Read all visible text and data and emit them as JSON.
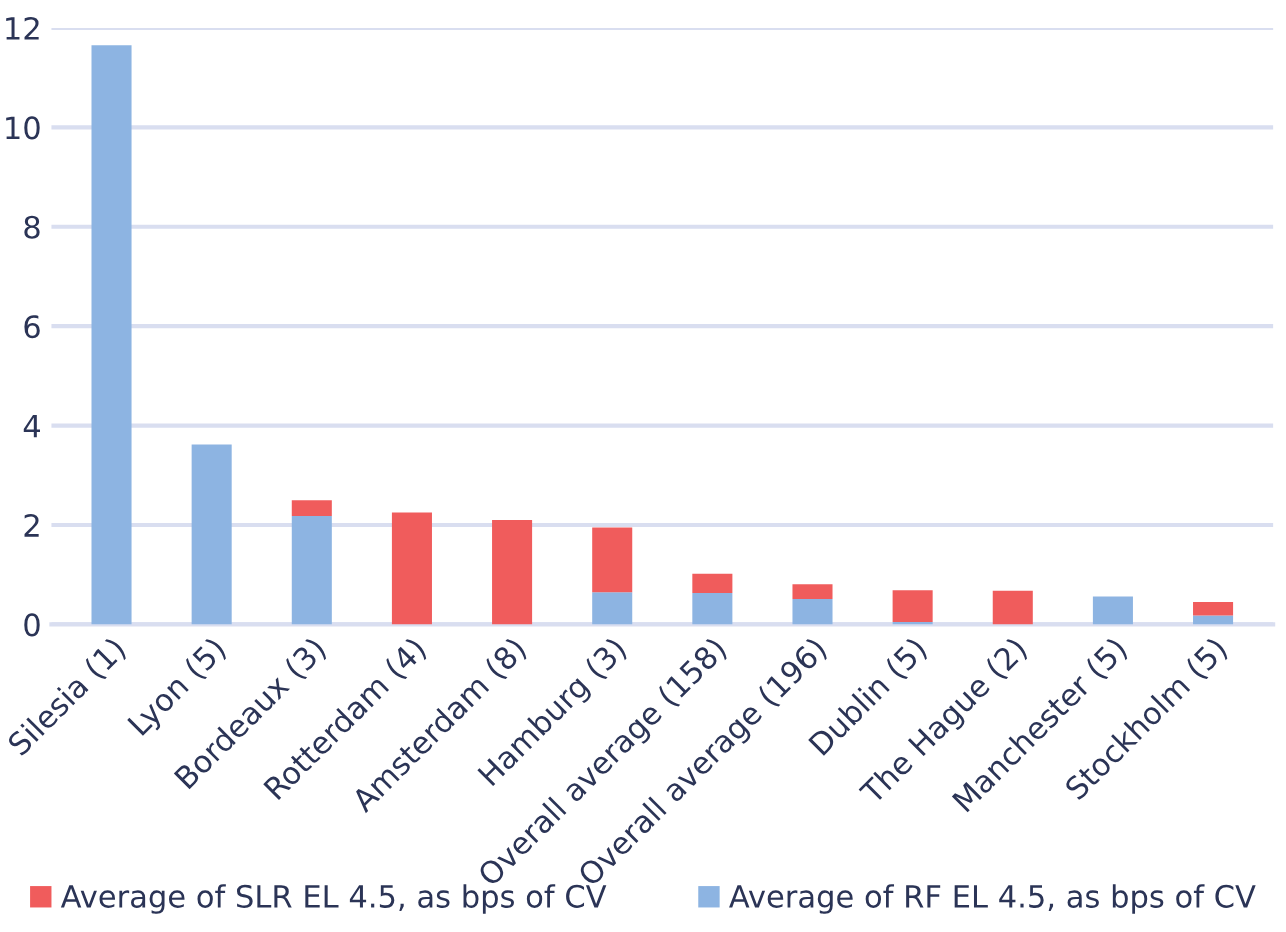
{
  "chart_data": {
    "type": "bar",
    "stacked": true,
    "categories": [
      "Silesia (1)",
      "Lyon (5)",
      "Bordeaux (3)",
      "Rotterdam (4)",
      "Amsterdam (8)",
      "Hamburg (3)",
      "Overall average (158)",
      "Overall average (196)",
      "Dublin (5)",
      "The Hague (2)",
      "Manchester (5)",
      "Stockholm (5)"
    ],
    "series": [
      {
        "name": "Average of RF EL 4.5, as bps of CV",
        "color": "#8db4e2",
        "values": [
          11.65,
          3.62,
          2.18,
          0,
          0,
          0.65,
          0.63,
          0.51,
          0.05,
          0,
          0.56,
          0.18
        ]
      },
      {
        "name": "Average of SLR EL 4.5, as bps of CV",
        "color": "#f05c5c",
        "values": [
          0,
          0,
          0.32,
          2.25,
          2.1,
          1.3,
          0.39,
          0.3,
          0.64,
          0.68,
          0,
          0.27
        ]
      }
    ],
    "ylim": [
      0,
      12
    ],
    "yticks": [
      0,
      2,
      4,
      6,
      8,
      10,
      12
    ],
    "grid": "y",
    "legend": "bottom"
  }
}
